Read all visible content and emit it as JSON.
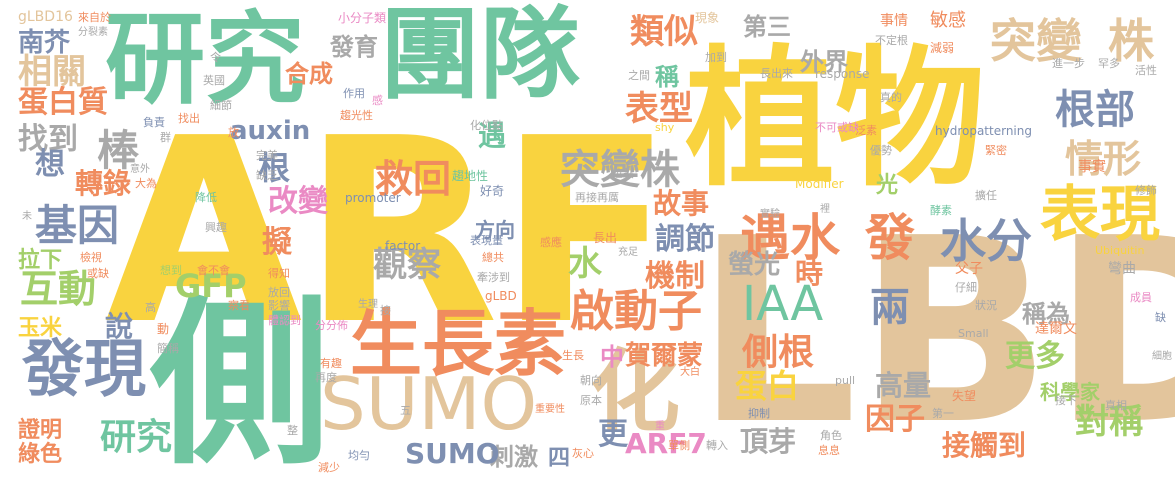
{
  "palette": {
    "yellow": "#f9d33f",
    "tan": "#e3c59c",
    "teal": "#6fc5a0",
    "slate": "#7e8fb1",
    "orange": "#f08c5e",
    "gray": "#a9a9a9",
    "green": "#a3cf6a",
    "pink": "#ea8ac4",
    "white": "#ffffff"
  },
  "words": [
    {
      "text": "ARF",
      "color": "yellow"
    },
    {
      "text": "LBD",
      "color": "tan"
    },
    {
      "text": "植物",
      "color": "yellow"
    },
    {
      "text": "側",
      "color": "teal"
    },
    {
      "text": "研究",
      "color": "teal"
    },
    {
      "text": "團隊",
      "color": "teal"
    },
    {
      "text": "生長素",
      "color": "orange"
    },
    {
      "text": "SUMO",
      "color": "tan"
    },
    {
      "text": "化",
      "color": "tan"
    },
    {
      "text": "發現",
      "color": "slate"
    },
    {
      "text": "突變",
      "color": "tan"
    },
    {
      "text": "株",
      "color": "tan"
    },
    {
      "text": "表現",
      "color": "yellow"
    },
    {
      "text": "遇水",
      "color": "orange"
    },
    {
      "text": "發",
      "color": "orange"
    },
    {
      "text": "水分",
      "color": "slate"
    },
    {
      "text": "啟動子",
      "color": "orange"
    },
    {
      "text": "IAA",
      "color": "teal"
    },
    {
      "text": "突變株",
      "color": "gray"
    },
    {
      "text": "棒",
      "color": "gray"
    },
    {
      "text": "基因",
      "color": "slate"
    },
    {
      "text": "根部",
      "color": "slate"
    },
    {
      "text": "情形",
      "color": "tan"
    },
    {
      "text": "救回",
      "color": "orange"
    },
    {
      "text": "類似",
      "color": "orange"
    },
    {
      "text": "表型",
      "color": "orange"
    },
    {
      "text": "側根",
      "color": "orange"
    },
    {
      "text": "蛋白",
      "color": "yellow"
    },
    {
      "text": "兩",
      "color": "slate"
    },
    {
      "text": "觀察",
      "color": "gray"
    },
    {
      "text": "水",
      "color": "green"
    },
    {
      "text": "調節",
      "color": "slate"
    },
    {
      "text": "研究",
      "color": "teal"
    },
    {
      "text": "發現",
      "color": "slate"
    },
    {
      "text": "互動",
      "color": "green"
    },
    {
      "text": "找到",
      "color": "gray"
    },
    {
      "text": "相關",
      "color": "tan"
    },
    {
      "text": "蛋白質",
      "color": "orange"
    },
    {
      "text": "南芥",
      "color": "slate"
    },
    {
      "text": "轉錄",
      "color": "orange"
    },
    {
      "text": "想",
      "color": "slate"
    },
    {
      "text": "GFP",
      "color": "green"
    },
    {
      "text": "auxin",
      "color": "slate"
    },
    {
      "text": "機制",
      "color": "orange"
    },
    {
      "text": "改變",
      "color": "pink"
    },
    {
      "text": "根",
      "color": "slate"
    },
    {
      "text": "故事",
      "color": "orange"
    },
    {
      "text": "螢光",
      "color": "gray"
    },
    {
      "text": "時",
      "color": "orange"
    },
    {
      "text": "中",
      "color": "pink"
    },
    {
      "text": "賀爾蒙",
      "color": "orange"
    },
    {
      "text": "更多",
      "color": "green"
    },
    {
      "text": "高量",
      "color": "gray"
    },
    {
      "text": "稱為",
      "color": "gray"
    },
    {
      "text": "科學家",
      "color": "green"
    },
    {
      "text": "因子",
      "color": "orange"
    },
    {
      "text": "對稱",
      "color": "green"
    },
    {
      "text": "接觸到",
      "color": "orange"
    },
    {
      "text": "頂芽",
      "color": "gray"
    },
    {
      "text": "ARF7",
      "color": "pink"
    },
    {
      "text": "刺激",
      "color": "gray"
    },
    {
      "text": "SUMO",
      "color": "slate"
    },
    {
      "text": "更",
      "color": "slate"
    },
    {
      "text": "證明",
      "color": "orange"
    },
    {
      "text": "綠色",
      "color": "orange"
    },
    {
      "text": "玉米",
      "color": "yellow"
    },
    {
      "text": "說",
      "color": "slate"
    },
    {
      "text": "拉下",
      "color": "green"
    },
    {
      "text": "擬",
      "color": "orange"
    },
    {
      "text": "遇",
      "color": "teal"
    },
    {
      "text": "合成",
      "color": "orange"
    },
    {
      "text": "發育",
      "color": "gray"
    },
    {
      "text": "第三",
      "color": "gray"
    },
    {
      "text": "外界",
      "color": "gray"
    },
    {
      "text": "稱",
      "color": "teal"
    },
    {
      "text": "光",
      "color": "green"
    },
    {
      "text": "方向",
      "color": "slate"
    },
    {
      "text": "四",
      "color": "slate"
    },
    {
      "text": "gLBD16",
      "color": "tan"
    },
    {
      "text": "小分子類",
      "color": "pink"
    },
    {
      "text": "現象",
      "color": "tan"
    },
    {
      "text": "事情",
      "color": "orange"
    },
    {
      "text": "敏感",
      "color": "orange"
    },
    {
      "text": "不定根",
      "color": "gray"
    },
    {
      "text": "減弱",
      "color": "orange"
    },
    {
      "text": "response",
      "color": "gray"
    },
    {
      "text": "進一步",
      "color": "gray"
    },
    {
      "text": "罕多",
      "color": "gray"
    },
    {
      "text": "活性",
      "color": "gray"
    },
    {
      "text": "hydropatterning",
      "color": "slate"
    },
    {
      "text": "優勢",
      "color": "gray"
    },
    {
      "text": "緊密",
      "color": "orange"
    },
    {
      "text": "事實",
      "color": "orange"
    },
    {
      "text": "擴任",
      "color": "gray"
    },
    {
      "text": "酵素",
      "color": "teal"
    },
    {
      "text": "修飾",
      "color": "gray"
    },
    {
      "text": "Ubiquitin",
      "color": "yellow"
    },
    {
      "text": "父子",
      "color": "orange"
    },
    {
      "text": "彎曲",
      "color": "gray"
    },
    {
      "text": "仔細",
      "color": "gray"
    },
    {
      "text": "成員",
      "color": "pink"
    },
    {
      "text": "狀況",
      "color": "gray"
    },
    {
      "text": "達爾文",
      "color": "orange"
    },
    {
      "text": "Small",
      "color": "gray"
    },
    {
      "text": "失望",
      "color": "orange"
    },
    {
      "text": "第一",
      "color": "gray"
    },
    {
      "text": "角色",
      "color": "gray"
    },
    {
      "text": "息息",
      "color": "orange"
    },
    {
      "text": "接下",
      "color": "gray"
    },
    {
      "text": "真相",
      "color": "gray"
    },
    {
      "text": "細胞",
      "color": "gray"
    },
    {
      "text": "缺",
      "color": "slate"
    },
    {
      "text": "Modifier",
      "color": "yellow"
    },
    {
      "text": "promoter",
      "color": "slate"
    },
    {
      "text": "factor",
      "color": "slate"
    },
    {
      "text": "gLBD",
      "color": "orange"
    },
    {
      "text": "來自於",
      "color": "orange"
    },
    {
      "text": "分裂素",
      "color": "gray"
    },
    {
      "text": "令",
      "color": "gray"
    },
    {
      "text": "英國",
      "color": "gray"
    },
    {
      "text": "細節",
      "color": "gray"
    },
    {
      "text": "作用",
      "color": "slate"
    },
    {
      "text": "負責",
      "color": "slate"
    },
    {
      "text": "找出",
      "color": "orange"
    },
    {
      "text": "群",
      "color": "gray"
    },
    {
      "text": "趨光性",
      "color": "orange"
    },
    {
      "text": "化位點",
      "color": "gray"
    },
    {
      "text": "shy",
      "color": "yellow"
    },
    {
      "text": "泛素",
      "color": "orange"
    },
    {
      "text": "不可或缺",
      "color": "pink"
    },
    {
      "text": "真的",
      "color": "gray"
    },
    {
      "text": "長出來",
      "color": "gray"
    },
    {
      "text": "加到",
      "color": "gray"
    },
    {
      "text": "之間",
      "color": "gray"
    },
    {
      "text": "感",
      "color": "pink"
    },
    {
      "text": "放",
      "color": "orange"
    },
    {
      "text": "完美",
      "color": "gray"
    },
    {
      "text": "缺乏",
      "color": "gray"
    },
    {
      "text": "大為",
      "color": "orange"
    },
    {
      "text": "降低",
      "color": "teal"
    },
    {
      "text": "意外",
      "color": "gray"
    },
    {
      "text": "未",
      "color": "gray"
    },
    {
      "text": "興趣",
      "color": "gray"
    },
    {
      "text": "或缺",
      "color": "orange"
    },
    {
      "text": "檢視",
      "color": "orange"
    },
    {
      "text": "想到",
      "color": "green"
    },
    {
      "text": "會不會",
      "color": "orange"
    },
    {
      "text": "得知",
      "color": "orange"
    },
    {
      "text": "放回",
      "color": "gray"
    },
    {
      "text": "影響",
      "color": "gray"
    },
    {
      "text": "察看",
      "color": "orange"
    },
    {
      "text": "體認到",
      "color": "pink"
    },
    {
      "text": "分分佈",
      "color": "pink"
    },
    {
      "text": "簡稱",
      "color": "gray"
    },
    {
      "text": "有趣",
      "color": "orange"
    },
    {
      "text": "動",
      "color": "orange"
    },
    {
      "text": "高",
      "color": "gray"
    },
    {
      "text": "生理",
      "color": "gray"
    },
    {
      "text": "接",
      "color": "gray"
    },
    {
      "text": "再度",
      "color": "gray"
    },
    {
      "text": "五",
      "color": "gray"
    },
    {
      "text": "重要性",
      "color": "orange"
    },
    {
      "text": "整",
      "color": "gray"
    },
    {
      "text": "均勻",
      "color": "slate"
    },
    {
      "text": "灰心",
      "color": "orange"
    },
    {
      "text": "減少",
      "color": "orange"
    },
    {
      "text": "原本",
      "color": "gray"
    },
    {
      "text": "朝向",
      "color": "gray"
    },
    {
      "text": "生長",
      "color": "orange"
    },
    {
      "text": "大白",
      "color": "orange"
    },
    {
      "text": "抑制",
      "color": "slate"
    },
    {
      "text": "pull",
      "color": "gray"
    },
    {
      "text": "單側",
      "color": "orange"
    },
    {
      "text": "轉入",
      "color": "gray"
    },
    {
      "text": "重",
      "color": "pink"
    },
    {
      "text": "趨地性",
      "color": "teal"
    },
    {
      "text": "好奇",
      "color": "slate"
    },
    {
      "text": "位點",
      "color": "gray"
    },
    {
      "text": "再接再厲",
      "color": "gray"
    },
    {
      "text": "感應",
      "color": "orange"
    },
    {
      "text": "長出",
      "color": "orange"
    },
    {
      "text": "充足",
      "color": "gray"
    },
    {
      "text": "總共",
      "color": "orange"
    },
    {
      "text": "牽涉到",
      "color": "gray"
    },
    {
      "text": "表現量",
      "color": "slate"
    },
    {
      "text": "實驗",
      "color": "gray"
    },
    {
      "text": "裡",
      "color": "gray"
    }
  ]
}
